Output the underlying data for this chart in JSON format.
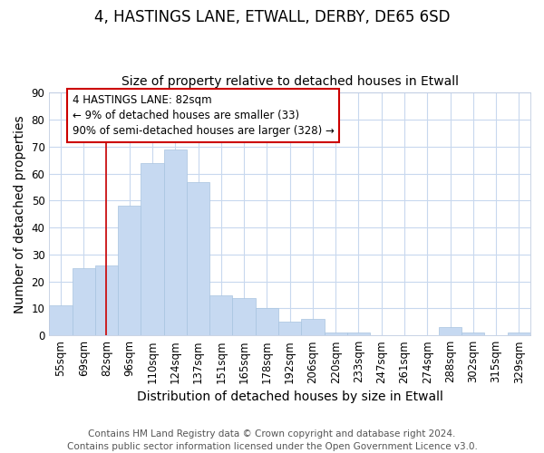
{
  "title1": "4, HASTINGS LANE, ETWALL, DERBY, DE65 6SD",
  "title2": "Size of property relative to detached houses in Etwall",
  "xlabel": "Distribution of detached houses by size in Etwall",
  "ylabel": "Number of detached properties",
  "categories": [
    "55sqm",
    "69sqm",
    "82sqm",
    "96sqm",
    "110sqm",
    "124sqm",
    "137sqm",
    "151sqm",
    "165sqm",
    "178sqm",
    "192sqm",
    "206sqm",
    "220sqm",
    "233sqm",
    "247sqm",
    "261sqm",
    "274sqm",
    "288sqm",
    "302sqm",
    "315sqm",
    "329sqm"
  ],
  "values": [
    11,
    25,
    26,
    48,
    64,
    69,
    57,
    15,
    14,
    10,
    5,
    6,
    1,
    1,
    0,
    0,
    0,
    3,
    1,
    0,
    1
  ],
  "bar_color": "#c6d9f1",
  "bar_edge_color": "#a8c4e0",
  "vline_x_index": 2,
  "vline_color": "#cc0000",
  "annotation_text": "4 HASTINGS LANE: 82sqm\n← 9% of detached houses are smaller (33)\n90% of semi-detached houses are larger (328) →",
  "annotation_box_facecolor": "#ffffff",
  "annotation_box_edgecolor": "#cc0000",
  "ylim": [
    0,
    90
  ],
  "yticks": [
    0,
    10,
    20,
    30,
    40,
    50,
    60,
    70,
    80,
    90
  ],
  "footer": "Contains HM Land Registry data © Crown copyright and database right 2024.\nContains public sector information licensed under the Open Government Licence v3.0.",
  "fig_facecolor": "#ffffff",
  "plot_facecolor": "#ffffff",
  "grid_color": "#c8d8ee",
  "title1_fontsize": 12,
  "title2_fontsize": 10,
  "axis_label_fontsize": 10,
  "tick_fontsize": 8.5,
  "footer_fontsize": 7.5,
  "annot_fontsize": 8.5
}
